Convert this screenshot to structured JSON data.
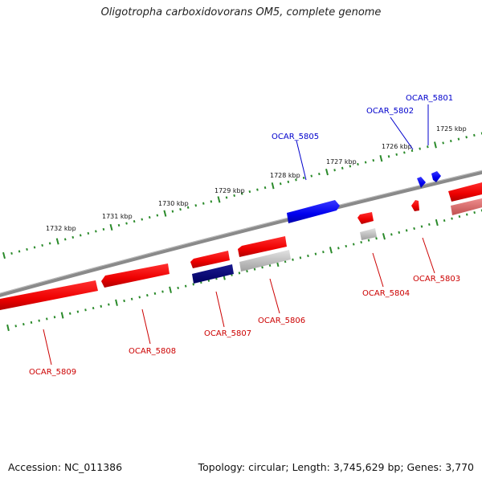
{
  "title": "Oligotropha carboxidovorans OM5, complete genome",
  "footer": {
    "accession": "Accession: NC_011386",
    "topology": "Topology: circular; Length: 3,745,629 bp; Genes: 3,770"
  },
  "colors": {
    "forward_gene": "#0000ee",
    "reverse_gene": "#ee0000",
    "tick": "#2a8a2a",
    "backbone": "#888888"
  },
  "kbp_labels": [
    "1725 kbp",
    "1726 kbp",
    "1727 kbp",
    "1728 kbp",
    "1729 kbp",
    "1730 kbp",
    "1731 kbp",
    "1732 kbp"
  ],
  "gene_labels": {
    "top": [
      "OCAR_5801",
      "OCAR_5802",
      "OCAR_5805"
    ],
    "bottom": [
      "OCAR_5803",
      "OCAR_5804",
      "OCAR_5806",
      "OCAR_5807",
      "OCAR_5808",
      "OCAR_5809"
    ]
  }
}
